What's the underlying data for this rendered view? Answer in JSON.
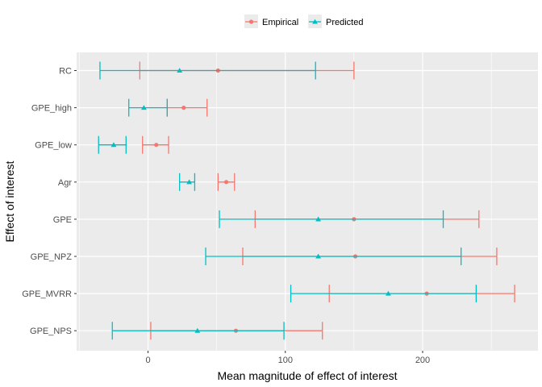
{
  "chart_data": {
    "type": "errorbar",
    "xlabel": "Mean magnitude of effect of interest",
    "ylabel": "Effect of interest",
    "xlim": [
      -52,
      284
    ],
    "x_ticks": [
      0,
      100,
      200
    ],
    "x_minor_ticks": [
      -50,
      50,
      150,
      250
    ],
    "grid": true,
    "legend_position": "top",
    "categories": [
      "RC",
      "GPE_high",
      "GPE_low",
      "Agr",
      "GPE",
      "GPE_NPZ",
      "GPE_MVRR",
      "GPE_NPS"
    ],
    "series": [
      {
        "name": "Empirical",
        "color": "#F8766D",
        "marker": "circle",
        "points": [
          {
            "category": "RC",
            "mean": 51,
            "low": -6,
            "high": 150
          },
          {
            "category": "GPE_high",
            "mean": 26,
            "low": 14,
            "high": 43
          },
          {
            "category": "GPE_low",
            "mean": 6,
            "low": -4,
            "high": 15
          },
          {
            "category": "Agr",
            "mean": 57,
            "low": 51,
            "high": 63
          },
          {
            "category": "GPE",
            "mean": 150,
            "low": 78,
            "high": 241
          },
          {
            "category": "GPE_NPZ",
            "mean": 151,
            "low": 69,
            "high": 254
          },
          {
            "category": "GPE_MVRR",
            "mean": 203,
            "low": 132,
            "high": 267
          },
          {
            "category": "GPE_NPS",
            "mean": 64,
            "low": 2,
            "high": 127
          }
        ]
      },
      {
        "name": "Predicted",
        "color": "#00BFC4",
        "marker": "triangle",
        "points": [
          {
            "category": "RC",
            "mean": 23,
            "low": -35,
            "high": 122
          },
          {
            "category": "GPE_high",
            "mean": -3,
            "low": -14,
            "high": 14
          },
          {
            "category": "GPE_low",
            "mean": -25,
            "low": -36,
            "high": -16
          },
          {
            "category": "Agr",
            "mean": 30,
            "low": 23,
            "high": 34
          },
          {
            "category": "GPE",
            "mean": 124,
            "low": 52,
            "high": 215
          },
          {
            "category": "GPE_NPZ",
            "mean": 124,
            "low": 42,
            "high": 228
          },
          {
            "category": "GPE_MVRR",
            "mean": 175,
            "low": 104,
            "high": 239
          },
          {
            "category": "GPE_NPS",
            "mean": 36,
            "low": -26,
            "high": 99
          }
        ]
      }
    ]
  }
}
